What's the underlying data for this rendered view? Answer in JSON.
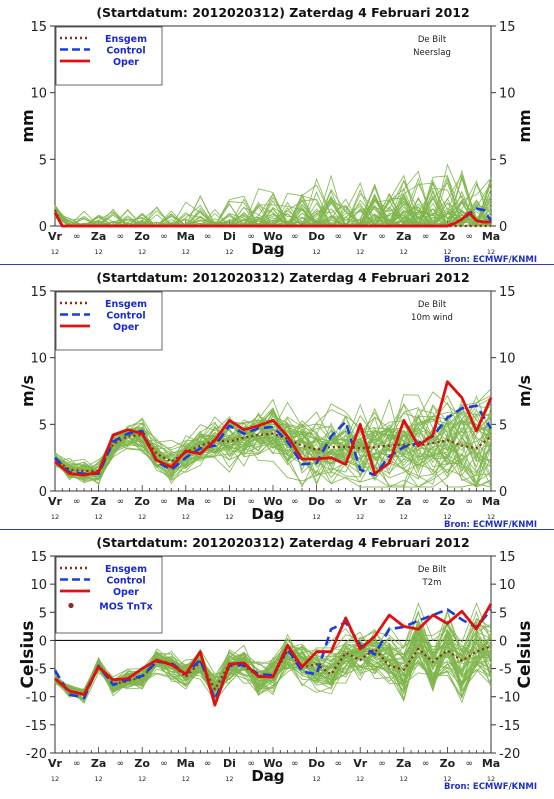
{
  "chart_data": [
    {
      "type": "line",
      "title": "(Startdatum: 2012020312)   Zaterdag   4 Februari  2012",
      "station": "De Bilt",
      "variable": "Neerslag",
      "ylabel": "mm",
      "ylabel_right": "mm",
      "xlabel": "Dag",
      "source": "Bron: ECMWF/KNMI",
      "ylim": [
        0,
        15
      ],
      "yticks": [
        0,
        5,
        10,
        15
      ],
      "x_steps": 60,
      "x_tick_labels": [
        "Vr",
        "Za",
        "Zo",
        "Ma",
        "Di",
        "Wo",
        "Do",
        "Vr",
        "Za",
        "Zo",
        "Ma"
      ],
      "legend": [
        {
          "label": "Ensgem",
          "style": "dotted",
          "color": "#8b2d1a"
        },
        {
          "label": "Control",
          "style": "dashed",
          "color": "#1a3de0"
        },
        {
          "label": "Oper",
          "style": "solid",
          "color": "#e01010"
        }
      ],
      "colors": {
        "ensemble": "#7fb64d",
        "ensgem": "#8b2d1a",
        "control": "#1a3de0",
        "oper": "#e01010"
      },
      "series": [
        {
          "name": "Ensgem",
          "step": 1,
          "values": [
            1.2,
            0,
            0,
            0,
            0,
            0,
            0,
            0,
            0,
            0,
            0,
            0,
            0,
            0,
            0,
            0,
            0,
            0,
            0,
            0,
            0,
            0,
            0,
            0,
            0,
            0,
            0,
            0,
            0,
            0,
            0,
            0,
            0,
            0,
            0,
            0,
            0,
            0,
            0,
            0,
            0,
            0,
            0,
            0,
            0,
            0,
            0,
            0,
            0,
            0,
            0,
            0,
            0,
            0,
            0,
            0,
            0,
            0,
            0,
            0,
            0
          ]
        },
        {
          "name": "Control",
          "step": 1,
          "values": [
            1,
            0,
            0,
            0,
            0,
            0,
            0,
            0,
            0,
            0,
            0,
            0,
            0,
            0,
            0,
            0,
            0,
            0,
            0,
            0,
            0,
            0,
            0,
            0,
            0,
            0,
            0,
            0,
            0,
            0,
            0,
            0,
            0,
            0,
            0,
            0,
            0,
            0,
            0,
            0,
            0,
            0,
            0,
            0,
            0,
            0,
            0,
            0,
            0,
            0,
            0,
            0,
            0,
            0,
            0,
            0.2,
            0.5,
            0.9,
            1.3,
            1.2,
            0.4
          ]
        },
        {
          "name": "Oper",
          "step": 1,
          "values": [
            1,
            0,
            0,
            0,
            0,
            0,
            0,
            0,
            0,
            0,
            0,
            0,
            0,
            0,
            0,
            0,
            0,
            0,
            0,
            0,
            0,
            0,
            0,
            0,
            0,
            0,
            0,
            0,
            0,
            0,
            0,
            0,
            0,
            0,
            0,
            0,
            0,
            0,
            0,
            0,
            0,
            0,
            0,
            0,
            0,
            0,
            0,
            0,
            0,
            0,
            0,
            0,
            0,
            0,
            0,
            0.2,
            0.5,
            1,
            0.4,
            0.3,
            0.3
          ]
        }
      ]
    },
    {
      "type": "line",
      "title": "(Startdatum: 2012020312)   Zaterdag   4 Februari  2012",
      "station": "De Bilt",
      "variable": "10m wind",
      "ylabel": "m/s",
      "ylabel_right": "m/s",
      "xlabel": "Dag",
      "source": "Bron: ECMWF/KNMI",
      "ylim": [
        0,
        15
      ],
      "yticks": [
        0,
        5,
        10,
        15
      ],
      "x_steps": 60,
      "x_tick_labels": [
        "Vr",
        "Za",
        "Zo",
        "Ma",
        "Di",
        "Wo",
        "Do",
        "Vr",
        "Za",
        "Zo",
        "Ma"
      ],
      "legend": [
        {
          "label": "Ensgem",
          "style": "dotted",
          "color": "#8b2d1a"
        },
        {
          "label": "Control",
          "style": "dashed",
          "color": "#1a3de0"
        },
        {
          "label": "Oper",
          "style": "solid",
          "color": "#e01010"
        }
      ],
      "colors": {
        "ensemble": "#7fb64d",
        "ensgem": "#8b2d1a",
        "control": "#1a3de0",
        "oper": "#e01010"
      },
      "series": [
        {
          "name": "Ensgem",
          "step": 2,
          "values": [
            2.4,
            1.6,
            1.5,
            1.5,
            3.5,
            4.1,
            4.2,
            2.8,
            2.2,
            2.9,
            3.4,
            3.8,
            3.7,
            4.0,
            4.2,
            4.3,
            3.9,
            3.4,
            3.1,
            3.3,
            3.3,
            3.2,
            3.3,
            3.4,
            3.5,
            3.4,
            3.6,
            3.8,
            3.4,
            3.2,
            4.1
          ]
        },
        {
          "name": "Control",
          "step": 2,
          "values": [
            2.5,
            1.4,
            1.3,
            1.3,
            3.7,
            4.3,
            4.5,
            2.2,
            1.6,
            2.5,
            3.2,
            3.4,
            4.9,
            4.3,
            4.7,
            4.8,
            3.7,
            2.0,
            2.1,
            4.1,
            5.2,
            1.6,
            1.2,
            2.6,
            3.3,
            3.6,
            4.1,
            5.5,
            6.2,
            6.4,
            4.7
          ]
        },
        {
          "name": "Oper",
          "step": 2,
          "values": [
            2.2,
            1.3,
            1.2,
            1.4,
            4.2,
            4.6,
            4.3,
            2.3,
            1.8,
            3.0,
            2.8,
            3.8,
            5.3,
            4.6,
            4.9,
            5.3,
            4.1,
            2.4,
            2.4,
            2.5,
            2.0,
            5.0,
            1.3,
            2.1,
            5.3,
            3.4,
            4.2,
            8.2,
            7.0,
            4.5,
            7.0
          ]
        }
      ]
    },
    {
      "type": "line",
      "title": "(Startdatum: 2012020312)   Zaterdag   4 Februari  2012",
      "station": "De Bilt",
      "variable": "T2m",
      "ylabel": "Celsius",
      "ylabel_right": "Celsius",
      "xlabel": "Dag",
      "source": "Bron: ECMWF/KNMI",
      "ylim": [
        -20,
        15
      ],
      "yticks": [
        -20,
        -15,
        -10,
        -5,
        0,
        5,
        10,
        15
      ],
      "x_steps": 60,
      "x_tick_labels": [
        "Vr",
        "Za",
        "Zo",
        "Ma",
        "Di",
        "Wo",
        "Do",
        "Vr",
        "Za",
        "Zo",
        "Ma"
      ],
      "legend": [
        {
          "label": "Ensgem",
          "style": "dotted",
          "color": "#8b2d1a"
        },
        {
          "label": "Control",
          "style": "dashed",
          "color": "#1a3de0"
        },
        {
          "label": "Oper",
          "style": "solid",
          "color": "#e01010"
        },
        {
          "label": "MOS TnTx",
          "style": "dot",
          "color": "#8b2d1a"
        }
      ],
      "colors": {
        "ensemble": "#7fb64d",
        "ensgem": "#8b2d1a",
        "control": "#1a3de0",
        "oper": "#e01010",
        "zero_line": "#000000"
      },
      "series": [
        {
          "name": "Ensgem",
          "step": 2,
          "values": [
            -6.8,
            -9.0,
            -9.5,
            -4.5,
            -7.8,
            -7.2,
            -6.5,
            -3.8,
            -4.1,
            -6.5,
            -3.8,
            -8.7,
            -4.1,
            -4.6,
            -6.3,
            -6.5,
            -1.8,
            -4.8,
            -4.2,
            -6.0,
            -2.2,
            -3.5,
            -1.5,
            -4.5,
            -5.2,
            -1.5,
            -3.8,
            -1.8,
            -3.6,
            -2.0,
            -1.0
          ]
        },
        {
          "name": "Control",
          "step": 2,
          "values": [
            -5.3,
            -9.6,
            -10.2,
            -4.5,
            -7.9,
            -7.0,
            -6.3,
            -3.8,
            -4.0,
            -6.0,
            -3.4,
            -10.5,
            -4.5,
            -4.4,
            -6.0,
            -6.2,
            -1.5,
            -5.5,
            -6.0,
            2.0,
            3.2,
            -0.8,
            -2.5,
            2.0,
            2.4,
            3.5,
            4.5,
            5.5,
            3.7,
            2.3,
            5.5
          ]
        },
        {
          "name": "Oper",
          "step": 2,
          "values": [
            -6.8,
            -9.0,
            -9.6,
            -4.7,
            -7.0,
            -6.8,
            -5.0,
            -3.5,
            -4.3,
            -6.0,
            -2.0,
            -11.5,
            -4.2,
            -4.0,
            -6.4,
            -6.5,
            -0.9,
            -4.7,
            -2.0,
            -2.0,
            4.0,
            -1.5,
            0.7,
            4.5,
            2.5,
            2.0,
            4.5,
            3.0,
            5.2,
            2.0,
            6.5
          ]
        }
      ]
    }
  ]
}
